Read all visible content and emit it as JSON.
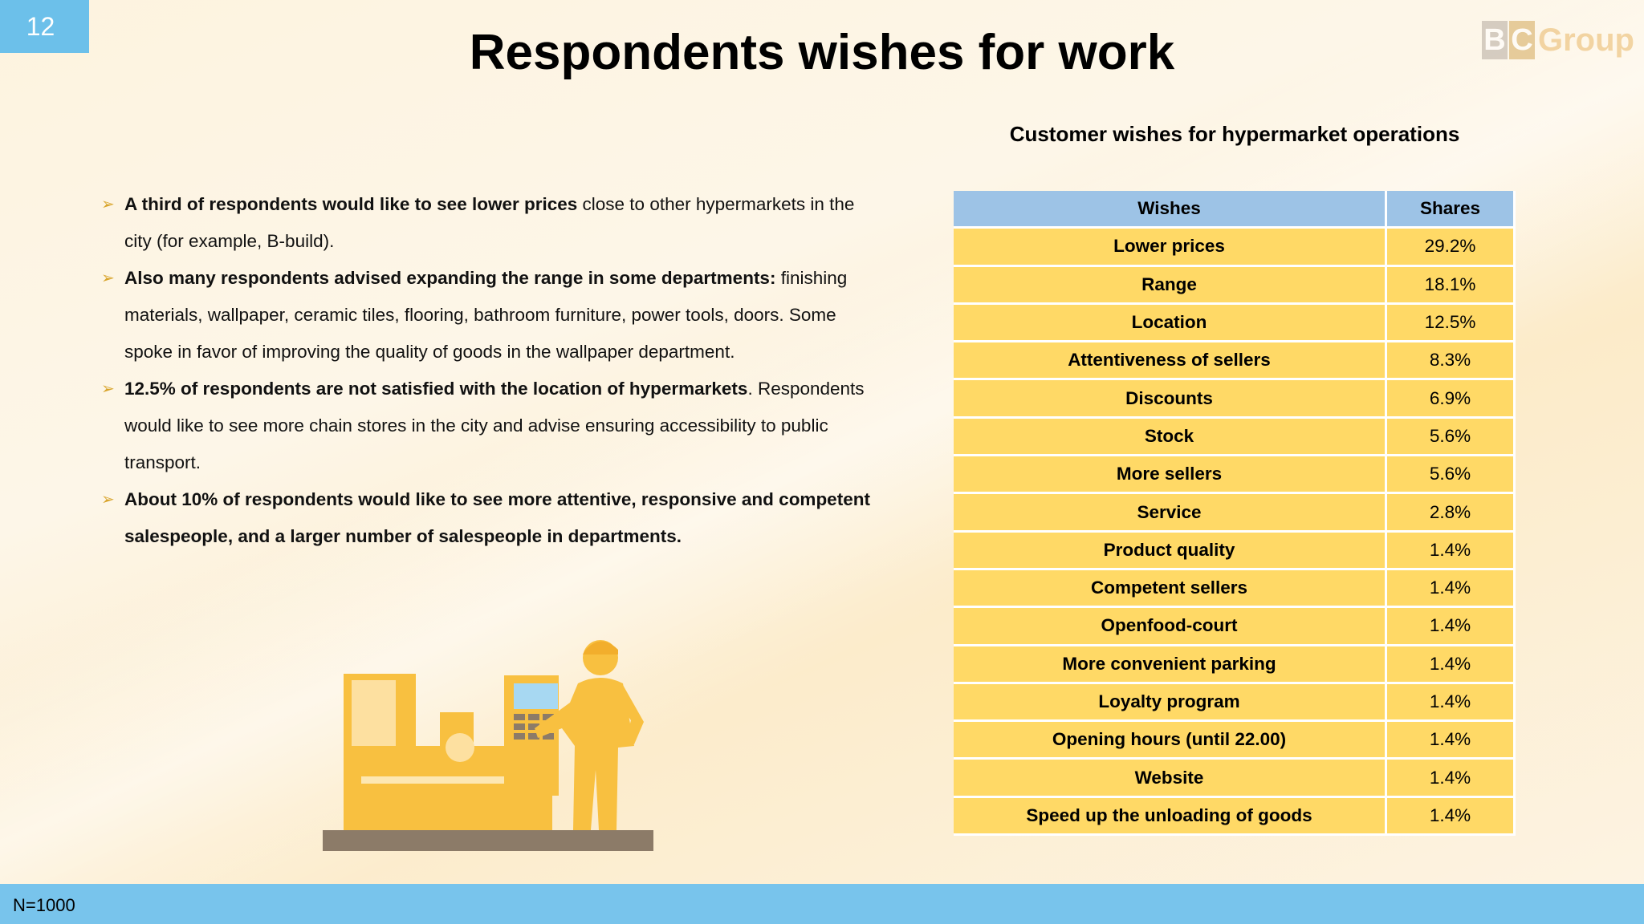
{
  "page_number": "12",
  "title": "Respondents wishes for work",
  "logo": {
    "letters": [
      "B",
      "C"
    ],
    "word": "Group"
  },
  "bullets": [
    {
      "bold": "A third of respondents would like to see lower prices",
      "text": " close to other hypermarkets in the city (for example, B-build)."
    },
    {
      "bold": "Also many respondents advised expanding the range in some departments:",
      "text": " finishing materials, wallpaper, ceramic tiles, flooring, bathroom furniture, power tools, doors. Some spoke in favor of improving the quality of goods in the wallpaper department."
    },
    {
      "bold": "12.5% of respondents are not satisfied with the location of hypermarkets",
      "text": ". Respondents would like to see more chain stores in the city and advise ensuring accessibility to public transport."
    },
    {
      "bold": "About 10% of respondents would like to see more attentive, responsive and competent salespeople, and a larger number of salespeople in departments.",
      "text": ""
    }
  ],
  "table": {
    "title": "Customer wishes for hypermarket operations",
    "headers": [
      "Wishes",
      "Shares"
    ],
    "rows": [
      [
        "Lower prices",
        "29.2%"
      ],
      [
        "Range",
        "18.1%"
      ],
      [
        "Location",
        "12.5%"
      ],
      [
        "Attentiveness of sellers",
        "8.3%"
      ],
      [
        "Discounts",
        "6.9%"
      ],
      [
        "Stock",
        "5.6%"
      ],
      [
        "More sellers",
        "5.6%"
      ],
      [
        "Service",
        "2.8%"
      ],
      [
        "Product quality",
        "1.4%"
      ],
      [
        "Competent sellers",
        "1.4%"
      ],
      [
        "Openfood-court",
        "1.4%"
      ],
      [
        "More convenient parking",
        "1.4%"
      ],
      [
        "Loyalty program",
        "1.4%"
      ],
      [
        "Opening hours (until 22.00)",
        "1.4%"
      ],
      [
        "Website",
        "1.4%"
      ],
      [
        "Speed up the unloading of goods",
        "1.4%"
      ]
    ]
  },
  "footer": {
    "note": "N=1000"
  },
  "colors": {
    "accent_blue": "#6cc0ea",
    "header_blue": "#9dc3e6",
    "row_yellow": "#ffd966",
    "illustration_yellow": "#f8c040",
    "bullet_arrow": "#d8a42a"
  },
  "icons": {
    "bullet": "arrow-bullet-icon",
    "illustration": "worker-machine-illustration",
    "logo": "bc-group-logo"
  }
}
